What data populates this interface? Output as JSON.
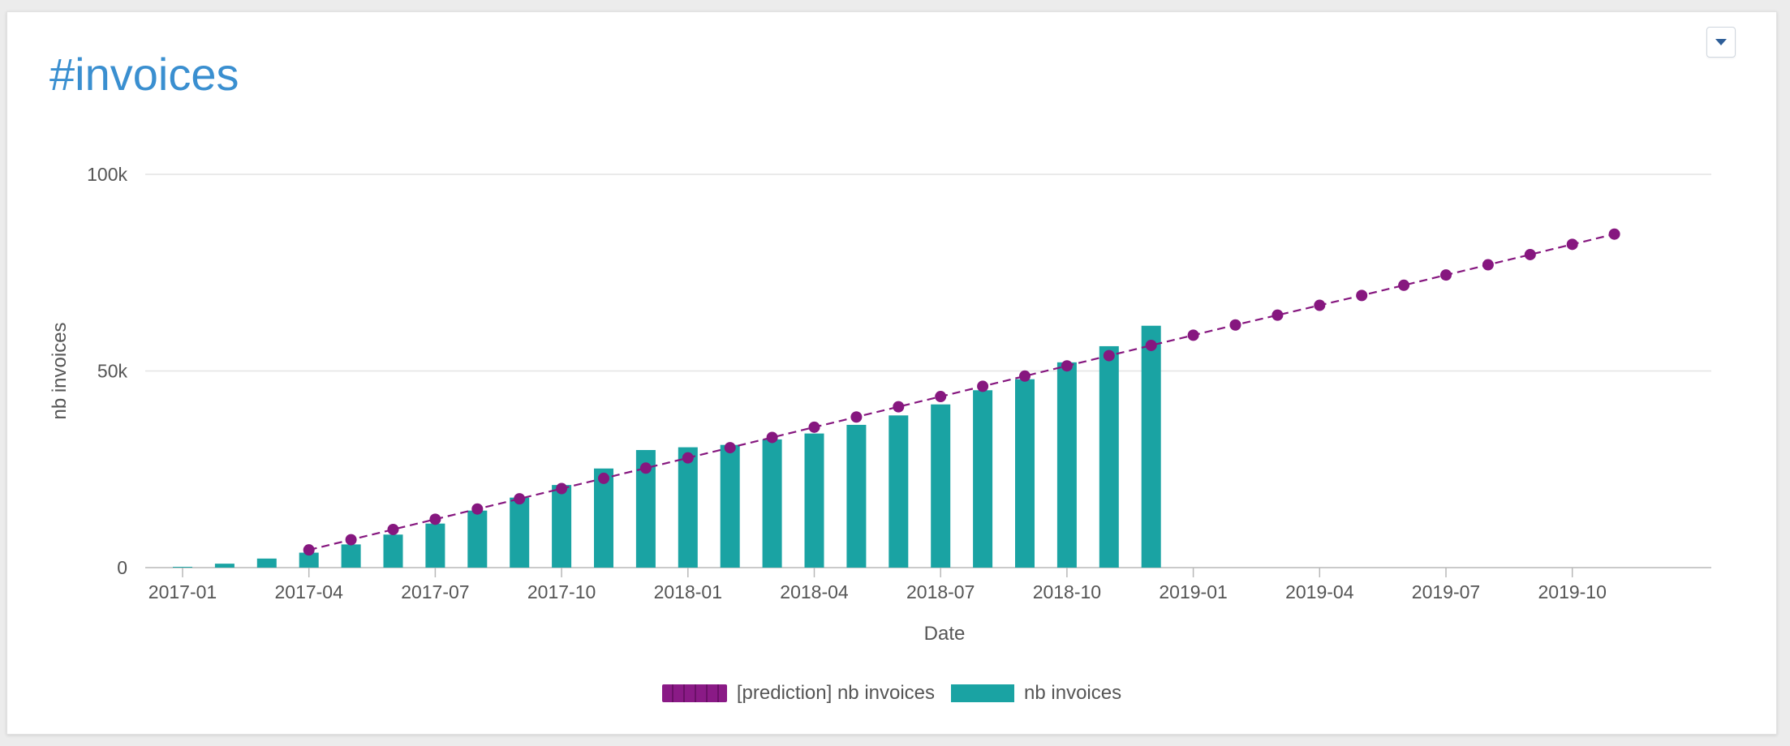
{
  "card": {
    "title": "#invoices"
  },
  "menu": {
    "icon": "caret-down-icon"
  },
  "colors": {
    "title": "#3a8fd0",
    "bars": "#1aa3a3",
    "prediction": "#86177f",
    "grid": "#e4e4e4"
  },
  "chart_data": {
    "type": "bar",
    "xlabel": "Date",
    "ylabel": "nb invoices",
    "ylim": [
      0,
      100000
    ],
    "yticks": [
      {
        "value": 0,
        "label": "0"
      },
      {
        "value": 50000,
        "label": "50k"
      },
      {
        "value": 100000,
        "label": "100k"
      }
    ],
    "xlim": [
      "2016-11",
      "2019-12"
    ],
    "xticks": [
      "2017-01",
      "2017-04",
      "2017-07",
      "2017-10",
      "2018-01",
      "2018-04",
      "2018-07",
      "2018-10",
      "2019-01",
      "2019-04",
      "2019-07",
      "2019-10"
    ],
    "grid": true,
    "legend_position": "bottom",
    "series": [
      {
        "name": "[prediction] nb invoices",
        "type": "line",
        "style": "dashed-with-markers",
        "x": [
          "2017-04",
          "2017-05",
          "2017-06",
          "2017-07",
          "2017-08",
          "2017-09",
          "2017-10",
          "2017-11",
          "2017-12",
          "2018-01",
          "2018-02",
          "2018-03",
          "2018-04",
          "2018-05",
          "2018-06",
          "2018-07",
          "2018-08",
          "2018-09",
          "2018-10",
          "2018-11",
          "2018-12",
          "2019-01",
          "2019-02",
          "2019-03",
          "2019-04",
          "2019-05",
          "2019-06",
          "2019-07",
          "2019-08",
          "2019-09",
          "2019-10",
          "2019-11"
        ],
        "values": [
          4500,
          7100,
          9700,
          12300,
          14900,
          17500,
          20100,
          22700,
          25300,
          27900,
          30500,
          33100,
          35700,
          38300,
          40900,
          43500,
          46100,
          48700,
          51300,
          53900,
          56500,
          59100,
          61700,
          64200,
          66700,
          69200,
          71800,
          74400,
          77000,
          79600,
          82200,
          84800
        ]
      },
      {
        "name": "nb invoices",
        "type": "bar",
        "x": [
          "2017-01",
          "2017-02",
          "2017-03",
          "2017-04",
          "2017-05",
          "2017-06",
          "2017-07",
          "2017-08",
          "2017-09",
          "2017-10",
          "2017-11",
          "2017-12",
          "2018-01",
          "2018-02",
          "2018-03",
          "2018-04",
          "2018-05",
          "2018-06",
          "2018-07",
          "2018-08",
          "2018-09",
          "2018-10",
          "2018-11",
          "2018-12"
        ],
        "values": [
          200,
          1000,
          2300,
          3800,
          5900,
          8400,
          11200,
          14500,
          17800,
          21000,
          25200,
          29900,
          30600,
          31200,
          32600,
          34100,
          36300,
          38700,
          41500,
          45100,
          47900,
          52200,
          56300,
          61500
        ]
      }
    ]
  }
}
